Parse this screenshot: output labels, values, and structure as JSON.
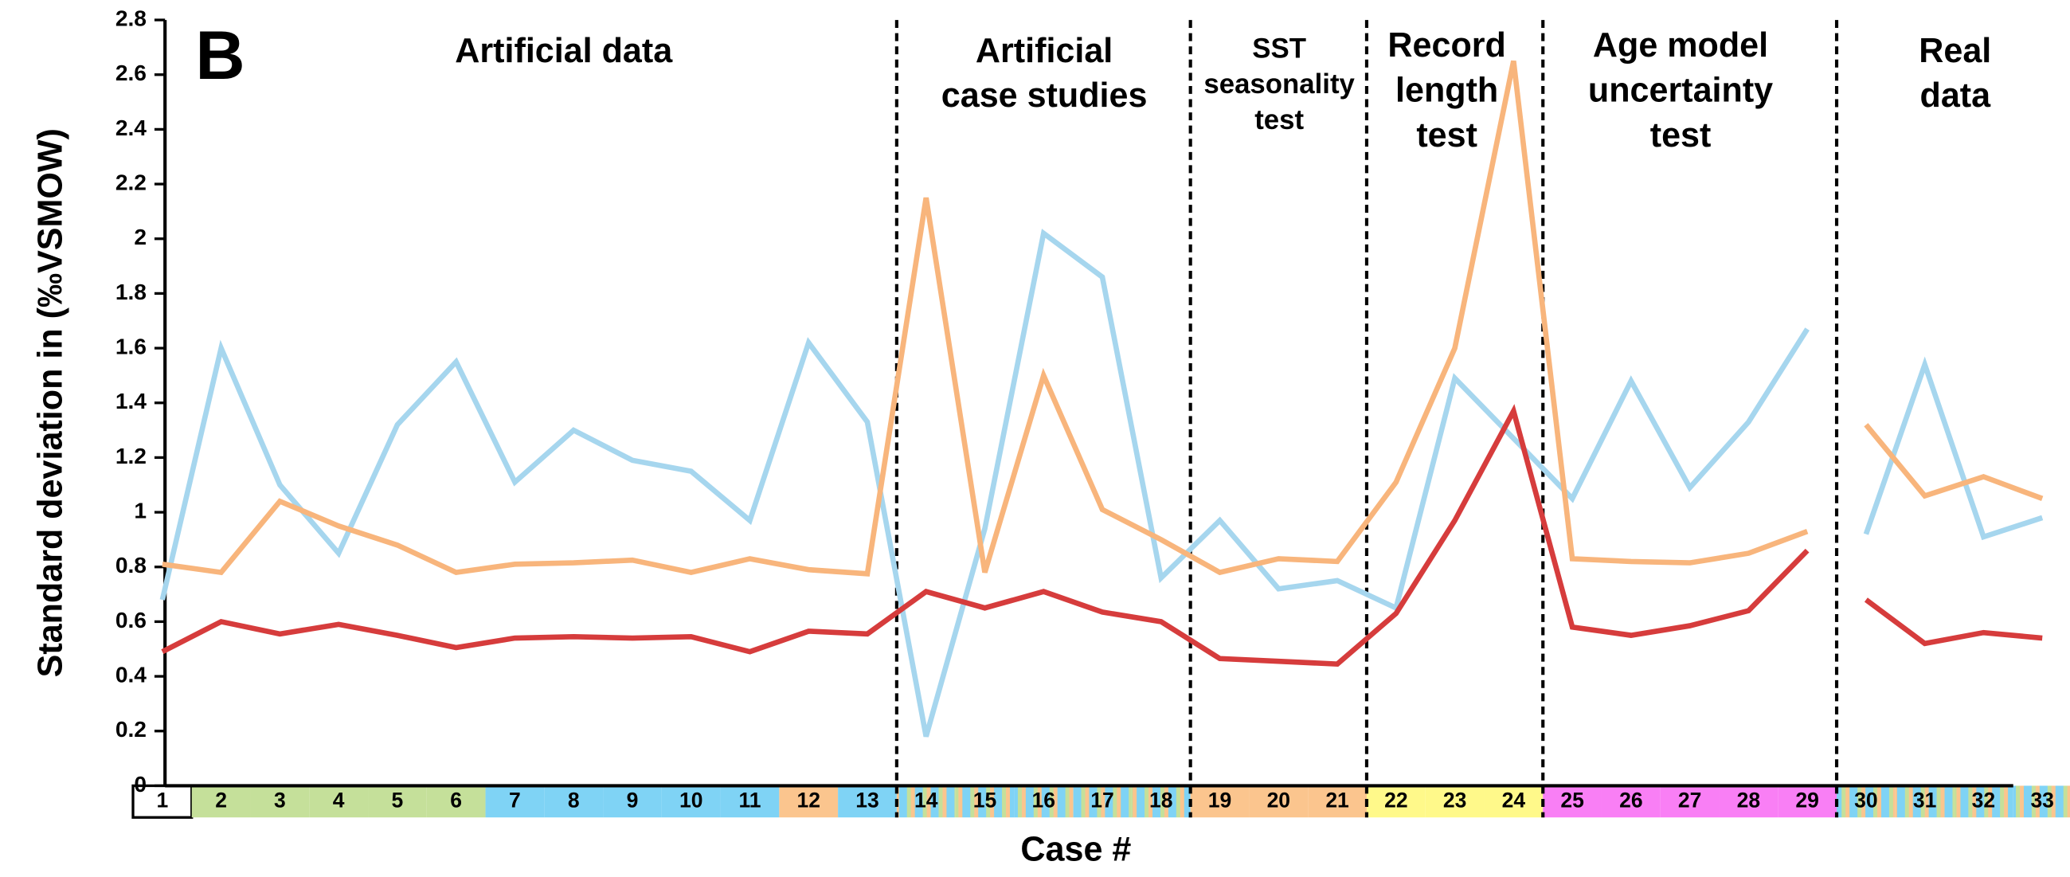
{
  "chart_data": {
    "type": "line",
    "panel": "B",
    "ylabel": "Standard deviation in (‰VSMOW)",
    "xlabel": "Case #",
    "x": [
      1,
      2,
      3,
      4,
      5,
      6,
      7,
      8,
      9,
      10,
      11,
      12,
      13,
      14,
      15,
      16,
      17,
      18,
      19,
      20,
      21,
      22,
      23,
      24,
      25,
      26,
      27,
      28,
      29,
      null,
      30,
      31,
      32,
      33
    ],
    "xlim": [
      1,
      33
    ],
    "ylim": [
      0,
      2.8
    ],
    "yticks": [
      0,
      0.2,
      0.4,
      0.6,
      0.8,
      1,
      1.2,
      1.4,
      1.6,
      1.8,
      2,
      2.2,
      2.4,
      2.6,
      2.8
    ],
    "case_colors": [
      "#ffffff",
      "#c5e09a",
      "#c5e09a",
      "#c5e09a",
      "#c5e09a",
      "#c5e09a",
      "#7fd3f5",
      "#7fd3f5",
      "#7fd3f5",
      "#7fd3f5",
      "#7fd3f5",
      "#fbc58e",
      "#7fd3f5",
      "url(#mix)",
      "url(#mix)",
      "url(#mix)",
      "url(#mix)",
      "url(#mix)",
      "#fbc58e",
      "#fbc58e",
      "#fbc58e",
      "#fff98a",
      "#fff98a",
      "#fff98a",
      "#f97ff5",
      "#f97ff5",
      "#f97ff5",
      "#f97ff5",
      "#f97ff5",
      null,
      "url(#mix)",
      "url(#mix)",
      "url(#mix)",
      "url(#mix)"
    ],
    "sections": [
      {
        "label": [
          "Artificial data"
        ]
      },
      {
        "label": [
          "Artificial",
          "case studies"
        ]
      },
      {
        "label": [
          "SST",
          "seasonality",
          "test"
        ]
      },
      {
        "label": [
          "Record",
          "length",
          "test"
        ]
      },
      {
        "label": [
          "Age model",
          "uncertainty",
          "test"
        ]
      },
      {
        "label": [
          "Real",
          "data"
        ]
      }
    ],
    "series": [
      {
        "color": "#a6d6ee",
        "values": [
          0.68,
          1.6,
          1.1,
          0.85,
          1.32,
          1.55,
          1.11,
          1.3,
          1.19,
          1.15,
          0.97,
          1.62,
          1.33,
          0.18,
          0.94,
          2.02,
          1.86,
          0.76,
          0.97,
          0.72,
          0.75,
          0.65,
          1.49,
          1.27,
          1.05,
          1.48,
          1.09,
          1.33,
          1.67,
          null,
          0.92,
          1.54,
          0.91,
          0.98
        ]
      },
      {
        "color": "#f8b57c",
        "values": [
          0.81,
          0.78,
          1.04,
          0.95,
          0.88,
          0.78,
          0.81,
          0.815,
          0.825,
          0.78,
          0.83,
          0.79,
          0.775,
          2.15,
          0.78,
          1.5,
          1.01,
          0.9,
          0.78,
          0.83,
          0.82,
          1.11,
          1.6,
          2.65,
          0.83,
          0.82,
          0.815,
          0.85,
          0.93,
          null,
          1.32,
          1.06,
          1.13,
          1.05
        ]
      },
      {
        "color": "#d63c3c",
        "values": [
          0.49,
          0.6,
          0.555,
          0.59,
          0.55,
          0.505,
          0.54,
          0.545,
          0.54,
          0.545,
          0.49,
          0.565,
          0.555,
          0.71,
          0.65,
          0.71,
          0.635,
          0.6,
          0.465,
          0.455,
          0.445,
          0.63,
          0.97,
          1.37,
          0.58,
          0.55,
          0.585,
          0.64,
          0.86,
          null,
          0.68,
          0.52,
          0.56,
          0.54
        ]
      }
    ]
  }
}
